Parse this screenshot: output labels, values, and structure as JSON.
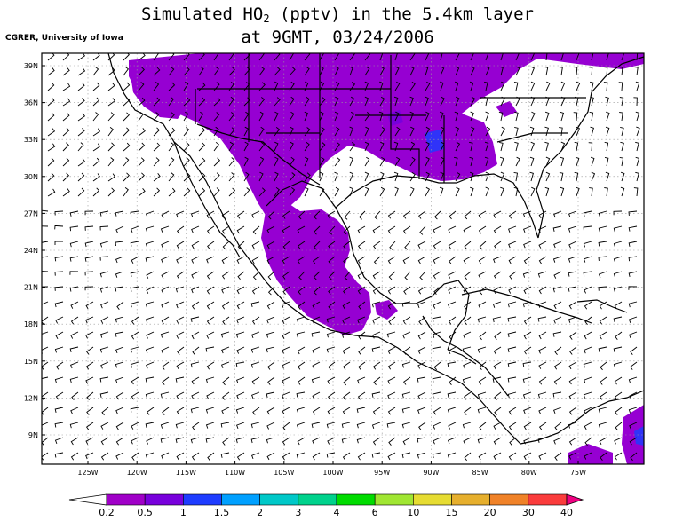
{
  "title": {
    "line1_pre": "Simulated HO",
    "line1_sub": "2",
    "line1_post": " (pptv) in the 5.4km layer",
    "line2": "at 9GMT, 03/24/2006"
  },
  "credit": "CGRER, University of Iowa",
  "map": {
    "lat_labels": [
      "39N",
      "36N",
      "33N",
      "30N",
      "27N",
      "24N",
      "21N",
      "18N",
      "15N",
      "12N",
      "9N"
    ],
    "lon_labels": [
      "125W",
      "120W",
      "115W",
      "110W",
      "105W",
      "100W",
      "95W",
      "90W",
      "85W",
      "80W",
      "75W"
    ],
    "grid_style": "dotted",
    "overlay": "wind-barbs"
  },
  "colorbar": {
    "labels": [
      "0.2",
      "0.5",
      "1",
      "1.5",
      "2",
      "3",
      "4",
      "6",
      "10",
      "15",
      "20",
      "30",
      "40"
    ],
    "colors": [
      "#a000c8",
      "#7800dc",
      "#1e3cff",
      "#00a0ff",
      "#00c8c8",
      "#00d28c",
      "#00dc00",
      "#a0e632",
      "#e6dc32",
      "#e6af2d",
      "#f08228",
      "#fa3c3c",
      "#f00082"
    ]
  },
  "field_colors": {
    "low": "#9600d2",
    "mid": "#7800dc",
    "high": "#1e3cff"
  }
}
